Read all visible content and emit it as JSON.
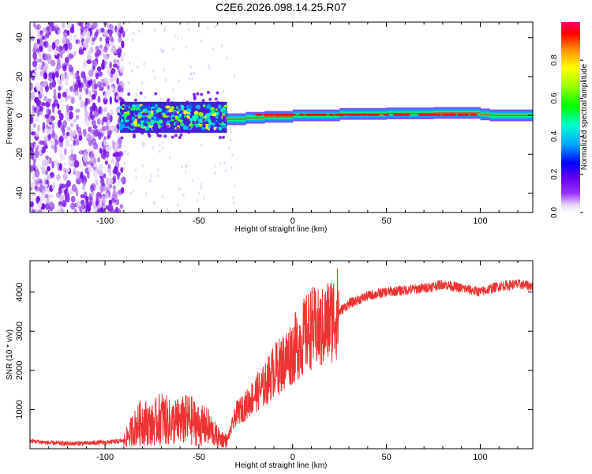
{
  "chart_data": [
    {
      "type": "heatmap",
      "title": "C2E6.2026.098.14.25.R07",
      "xlabel": "Height of straight line (km)",
      "ylabel": "Frequency (Hz)",
      "xlim": [
        -140,
        128
      ],
      "ylim": [
        -50,
        48
      ],
      "xticks": [
        -100,
        -50,
        0,
        50,
        100
      ],
      "xtick_labels": [
        "-100",
        "-50",
        "0",
        "50",
        "100"
      ],
      "yticks": [
        -40,
        -20,
        0,
        20,
        40
      ],
      "ytick_labels": [
        "-40",
        "-20",
        "0",
        "20",
        "40"
      ],
      "grid": false,
      "colorbar": {
        "label": "Normalized spectral amplitude",
        "range": [
          0,
          1
        ],
        "ticks": [
          0,
          0.2,
          0.4,
          0.6,
          0.8
        ],
        "tick_labels": [
          "0.0",
          "0.2",
          "0.4",
          "0.6",
          "0.8"
        ]
      },
      "regions": [
        {
          "name": "diffuse noise",
          "x_range": [
            -140,
            -90
          ],
          "freq_range": [
            -50,
            48
          ],
          "amplitude": 0.08
        },
        {
          "name": "turbulent band",
          "x_range": [
            -92,
            -35
          ],
          "freq_range": [
            -10,
            8
          ],
          "amplitude": 0.35
        },
        {
          "name": "narrow carrier",
          "x_range": [
            -35,
            128
          ],
          "freq_range": [
            -2,
            2
          ],
          "amplitude": 0.95
        }
      ],
      "carrier_center_hz": [
        {
          "x": -35,
          "f": -2.5
        },
        {
          "x": -25,
          "f": -1.5
        },
        {
          "x": -15,
          "f": -1
        },
        {
          "x": 0,
          "f": -0.5
        },
        {
          "x": 25,
          "f": 0.5
        },
        {
          "x": 50,
          "f": 1
        },
        {
          "x": 75,
          "f": 1
        },
        {
          "x": 100,
          "f": 1.5
        },
        {
          "x": 105,
          "f": -0.5
        },
        {
          "x": 128,
          "f": 0.5
        }
      ]
    },
    {
      "type": "line",
      "title": "",
      "xlabel": "Height of straight line (km)",
      "ylabel": "SNR (10 * v/v)",
      "xlim": [
        -140,
        128
      ],
      "ylim": [
        0,
        4800
      ],
      "xticks": [
        -100,
        -50,
        0,
        50,
        100
      ],
      "xtick_labels": [
        "-100",
        "-50",
        "0",
        "50",
        "100"
      ],
      "yticks": [
        1000,
        2000,
        3000,
        4000
      ],
      "ytick_labels": [
        "1000",
        "2000",
        "3000",
        "4000"
      ],
      "grid": false,
      "series": [
        {
          "name": "SNR",
          "color": "#ee3333",
          "x": [
            -140,
            -130,
            -120,
            -110,
            -100,
            -90,
            -85,
            -80,
            -75,
            -70,
            -65,
            -60,
            -55,
            -50,
            -45,
            -40,
            -35,
            -30,
            -25,
            -20,
            -15,
            -10,
            -5,
            0,
            5,
            10,
            15,
            20,
            25,
            30,
            40,
            50,
            60,
            70,
            80,
            90,
            100,
            110,
            120,
            128
          ],
          "values": [
            200,
            150,
            130,
            140,
            160,
            200,
            500,
            700,
            600,
            800,
            650,
            700,
            750,
            600,
            550,
            300,
            200,
            900,
            1100,
            1400,
            1600,
            2000,
            2200,
            2500,
            2800,
            3100,
            3000,
            3300,
            3500,
            3700,
            3900,
            4000,
            4050,
            4100,
            4200,
            4100,
            4000,
            4150,
            4200,
            4150
          ]
        }
      ]
    }
  ]
}
